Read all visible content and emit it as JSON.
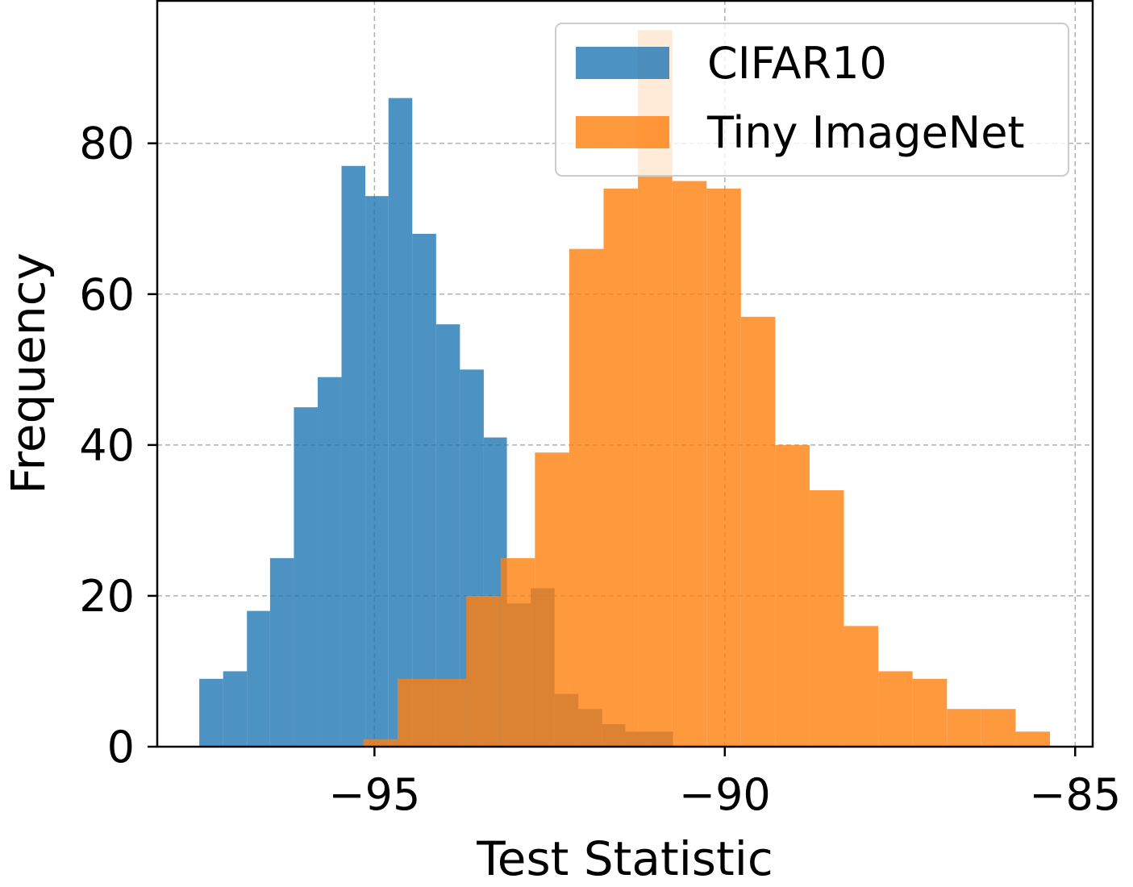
{
  "chart_data": {
    "type": "bar",
    "subtype": "overlapping-histogram",
    "xlabel": "Test Statistic",
    "ylabel": "Frequency",
    "xlim": [
      -98.1,
      -84.75
    ],
    "ylim": [
      0,
      99
    ],
    "xticks": [
      -95,
      -90,
      -85
    ],
    "xtick_labels": [
      "−95",
      "−90",
      "−85"
    ],
    "yticks": [
      0,
      20,
      40,
      60,
      80
    ],
    "ytick_labels": [
      "0",
      "20",
      "40",
      "60",
      "80"
    ],
    "grid": true,
    "legend_position": "top-right",
    "series": [
      {
        "name": "CIFAR10",
        "color": "#1f77b4",
        "opacity": 0.8,
        "bins": [
          {
            "x0": -97.5,
            "x1": -97.16,
            "count": 9
          },
          {
            "x0": -97.16,
            "x1": -96.82,
            "count": 10
          },
          {
            "x0": -96.82,
            "x1": -96.49,
            "count": 18
          },
          {
            "x0": -96.49,
            "x1": -96.15,
            "count": 25
          },
          {
            "x0": -96.15,
            "x1": -95.81,
            "count": 45
          },
          {
            "x0": -95.81,
            "x1": -95.47,
            "count": 49
          },
          {
            "x0": -95.47,
            "x1": -95.13,
            "count": 77
          },
          {
            "x0": -95.13,
            "x1": -94.8,
            "count": 73
          },
          {
            "x0": -94.8,
            "x1": -94.46,
            "count": 86
          },
          {
            "x0": -94.46,
            "x1": -94.12,
            "count": 68
          },
          {
            "x0": -94.12,
            "x1": -93.78,
            "count": 56
          },
          {
            "x0": -93.78,
            "x1": -93.44,
            "count": 50
          },
          {
            "x0": -93.44,
            "x1": -93.11,
            "count": 41
          },
          {
            "x0": -93.11,
            "x1": -92.77,
            "count": 19
          },
          {
            "x0": -92.77,
            "x1": -92.43,
            "count": 21
          },
          {
            "x0": -92.43,
            "x1": -92.09,
            "count": 7
          },
          {
            "x0": -92.09,
            "x1": -91.75,
            "count": 5
          },
          {
            "x0": -91.75,
            "x1": -91.42,
            "count": 3
          },
          {
            "x0": -91.42,
            "x1": -91.08,
            "count": 2
          },
          {
            "x0": -91.08,
            "x1": -90.74,
            "count": 2
          }
        ]
      },
      {
        "name": "Tiny ImageNet",
        "color": "#ff7f0e",
        "opacity": 0.8,
        "bins": [
          {
            "x0": -95.16,
            "x1": -94.67,
            "count": 1
          },
          {
            "x0": -94.67,
            "x1": -94.18,
            "count": 9
          },
          {
            "x0": -94.18,
            "x1": -93.69,
            "count": 9
          },
          {
            "x0": -93.69,
            "x1": -93.2,
            "count": 20
          },
          {
            "x0": -93.2,
            "x1": -92.71,
            "count": 25
          },
          {
            "x0": -92.71,
            "x1": -92.22,
            "count": 39
          },
          {
            "x0": -92.22,
            "x1": -91.73,
            "count": 66
          },
          {
            "x0": -91.73,
            "x1": -91.24,
            "count": 74
          },
          {
            "x0": -91.24,
            "x1": -90.75,
            "count": 95
          },
          {
            "x0": -90.75,
            "x1": -90.26,
            "count": 75
          },
          {
            "x0": -90.26,
            "x1": -89.77,
            "count": 74
          },
          {
            "x0": -89.77,
            "x1": -89.28,
            "count": 57
          },
          {
            "x0": -89.28,
            "x1": -88.79,
            "count": 40
          },
          {
            "x0": -88.79,
            "x1": -88.3,
            "count": 34
          },
          {
            "x0": -88.3,
            "x1": -87.81,
            "count": 16
          },
          {
            "x0": -87.81,
            "x1": -87.32,
            "count": 10
          },
          {
            "x0": -87.32,
            "x1": -86.83,
            "count": 9
          },
          {
            "x0": -86.83,
            "x1": -86.34,
            "count": 5
          },
          {
            "x0": -86.34,
            "x1": -85.85,
            "count": 5
          },
          {
            "x0": -85.85,
            "x1": -85.36,
            "count": 2
          }
        ]
      }
    ]
  }
}
